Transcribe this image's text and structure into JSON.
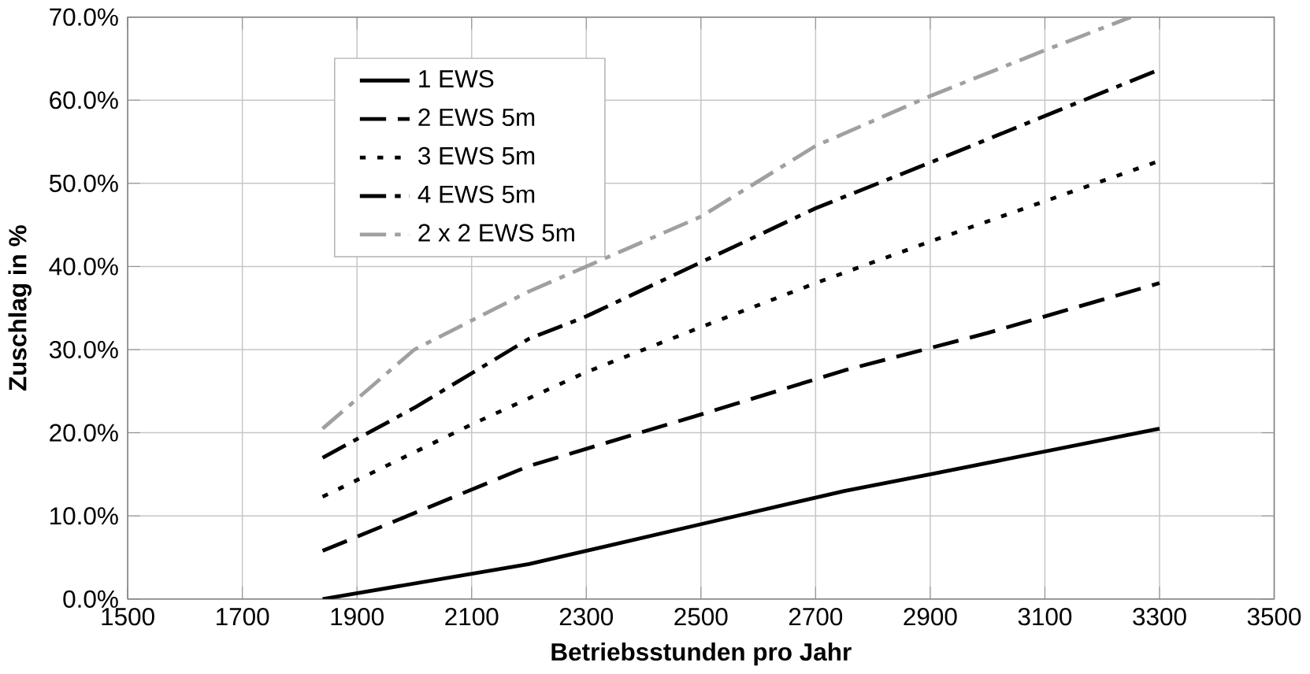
{
  "chart_data": {
    "type": "line",
    "xlabel": "Betriebsstunden pro Jahr",
    "ylabel": "Zuschlag in %",
    "xlim": [
      1500,
      3500
    ],
    "xticks": [
      1500,
      1700,
      1900,
      2100,
      2300,
      2500,
      2700,
      2900,
      3100,
      3300,
      3500
    ],
    "ylim": [
      0,
      70
    ],
    "yticks": [
      {
        "value": 0,
        "label": "0.0%"
      },
      {
        "value": 10,
        "label": "10.0%"
      },
      {
        "value": 20,
        "label": "20.0%"
      },
      {
        "value": 30,
        "label": "30.0%"
      },
      {
        "value": 40,
        "label": "40.0%"
      },
      {
        "value": 50,
        "label": "50.0%"
      },
      {
        "value": 60,
        "label": "60.0%"
      },
      {
        "value": 70,
        "label": "70.0%"
      }
    ],
    "grid": true,
    "legend": "top left",
    "marker": "none",
    "series": [
      {
        "name": "1 EWS",
        "color": "#000000",
        "line_style": "solid",
        "x": [
          1840,
          2200,
          2500,
          2750,
          2900,
          3300
        ],
        "values": [
          0,
          4.2,
          9,
          13,
          15,
          20.5
        ]
      },
      {
        "name": "2 EWS 5m",
        "color": "#000000",
        "line_style": "dashed",
        "x": [
          1840,
          2200,
          2500,
          2750,
          3000,
          3300
        ],
        "values": [
          5.8,
          16,
          22.2,
          27.5,
          32,
          38
        ]
      },
      {
        "name": "3 EWS 5m",
        "color": "#000000",
        "line_style": "dotted",
        "x": [
          1840,
          2100,
          2300,
          2500,
          2700,
          2900,
          3300
        ],
        "values": [
          12.3,
          21,
          27.3,
          32.7,
          38,
          43,
          52.7
        ]
      },
      {
        "name": "4 EWS 5m",
        "color": "#000000",
        "line_style": "dashdotted",
        "x": [
          1840,
          2000,
          2200,
          2300,
          2500,
          2700,
          2900,
          3300
        ],
        "values": [
          17,
          23,
          31.3,
          34,
          40.5,
          47,
          52.5,
          63.7
        ]
      },
      {
        "name": "2 x 2 EWS 5m",
        "color": "#a0a0a0",
        "line_style": "dashdotted",
        "x": [
          1840,
          2000,
          2200,
          2300,
          2500,
          2700,
          2900,
          3100,
          3250
        ],
        "values": [
          20.5,
          30,
          37,
          40,
          46,
          54.5,
          60.5,
          66,
          70
        ]
      }
    ]
  }
}
